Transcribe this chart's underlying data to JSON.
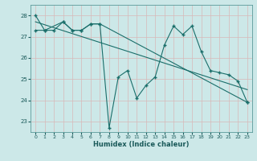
{
  "xlabel": "Humidex (Indice chaleur)",
  "background_color": "#cce8e8",
  "grid_color": "#b0d0d0",
  "line_color": "#1a6e6a",
  "xlim": [
    -0.5,
    23.5
  ],
  "ylim": [
    22.5,
    28.5
  ],
  "yticks": [
    23,
    24,
    25,
    26,
    27,
    28
  ],
  "xticks": [
    0,
    1,
    2,
    3,
    4,
    5,
    6,
    7,
    8,
    9,
    10,
    11,
    12,
    13,
    14,
    15,
    16,
    17,
    18,
    19,
    20,
    21,
    22,
    23
  ],
  "line1_x": [
    0,
    1,
    2,
    3,
    4,
    5,
    6,
    7,
    8,
    9,
    10,
    11,
    12,
    13,
    14,
    15,
    16,
    17,
    18,
    19,
    20,
    21,
    22,
    23
  ],
  "line1_y": [
    28.0,
    27.3,
    27.3,
    27.7,
    27.3,
    27.3,
    27.6,
    27.6,
    22.7,
    25.1,
    25.4,
    24.1,
    24.7,
    25.1,
    26.6,
    27.5,
    27.1,
    27.5,
    26.3,
    25.4,
    25.3,
    25.2,
    24.9,
    23.9
  ],
  "line2_x": [
    0,
    1,
    3,
    4,
    5,
    6,
    7,
    23
  ],
  "line2_y": [
    27.3,
    27.3,
    27.7,
    27.3,
    27.3,
    27.6,
    27.6,
    23.9
  ],
  "line3_x": [
    0,
    23
  ],
  "line3_y": [
    27.7,
    24.5
  ]
}
